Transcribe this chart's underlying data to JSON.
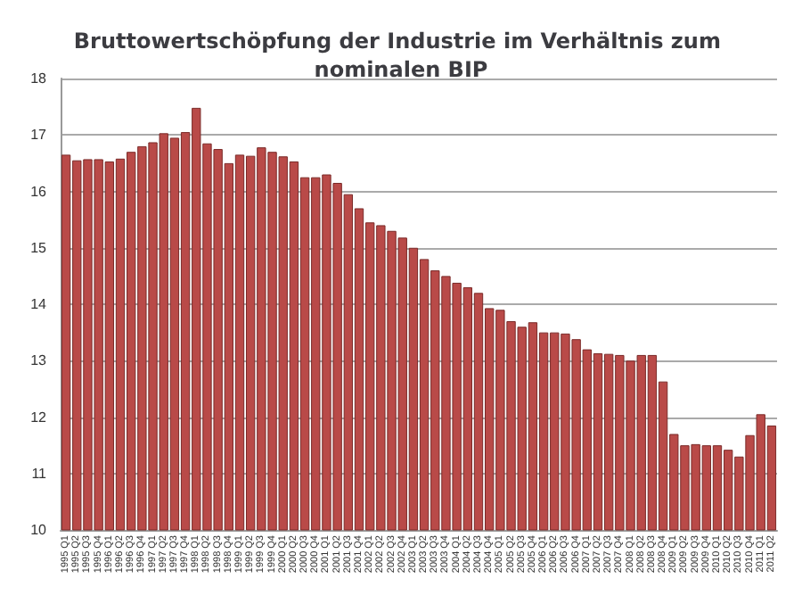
{
  "chart_data": {
    "type": "bar",
    "title": "Bruttowertschöpfung der Industrie im Verhältnis zum nominalen BIP",
    "categories": [
      "1995 Q1",
      "1995 Q2",
      "1995 Q3",
      "1995 Q4",
      "1996 Q1",
      "1996 Q2",
      "1996 Q3",
      "1996 Q4",
      "1997 Q1",
      "1997 Q2",
      "1997 Q3",
      "1997 Q4",
      "1998 Q1",
      "1998 Q2",
      "1998 Q3",
      "1998 Q4",
      "1999 Q1",
      "1999 Q2",
      "1999 Q3",
      "1999 Q4",
      "2000 Q1",
      "2000 Q2",
      "2000 Q3",
      "2000 Q4",
      "2001 Q1",
      "2001 Q2",
      "2001 Q3",
      "2001 Q4",
      "2002 Q1",
      "2002 Q2",
      "2002 Q3",
      "2002 Q4",
      "2003 Q1",
      "2003 Q2",
      "2003 Q3",
      "2003 Q4",
      "2004 Q1",
      "2004 Q2",
      "2004 Q3",
      "2004 Q4",
      "2005 Q1",
      "2005 Q2",
      "2005 Q3",
      "2005 Q4",
      "2006 Q1",
      "2006 Q2",
      "2006 Q3",
      "2006 Q4",
      "2007 Q1",
      "2007 Q2",
      "2007 Q3",
      "2007 Q4",
      "2008 Q1",
      "2008 Q2",
      "2008 Q3",
      "2008 Q4",
      "2009 Q1",
      "2009 Q2",
      "2009 Q3",
      "2009 Q4",
      "2010 Q1",
      "2010 Q2",
      "2010 Q3",
      "2010 Q4",
      "2011 Q1",
      "2011 Q2"
    ],
    "values": [
      16.65,
      16.55,
      16.57,
      16.57,
      16.53,
      16.58,
      16.7,
      16.8,
      16.87,
      17.03,
      16.95,
      17.05,
      17.48,
      16.85,
      16.75,
      16.5,
      16.65,
      16.63,
      16.78,
      16.7,
      16.62,
      16.53,
      16.25,
      16.25,
      16.3,
      16.15,
      15.95,
      15.7,
      15.45,
      15.4,
      15.3,
      15.18,
      15.0,
      14.8,
      14.6,
      14.5,
      14.38,
      14.3,
      14.2,
      13.93,
      13.9,
      13.7,
      13.6,
      13.68,
      13.5,
      13.5,
      13.48,
      13.38,
      13.2,
      13.13,
      13.12,
      13.1,
      13.0,
      13.1,
      13.1,
      12.63,
      11.7,
      11.5,
      11.52,
      11.5,
      11.5,
      11.42,
      11.3,
      11.68,
      12.05,
      11.85
    ],
    "color": "#b94a48",
    "ylim": [
      10,
      18
    ],
    "yticks": [
      10,
      11,
      12,
      13,
      14,
      15,
      16,
      17,
      18
    ],
    "grid": "y"
  }
}
